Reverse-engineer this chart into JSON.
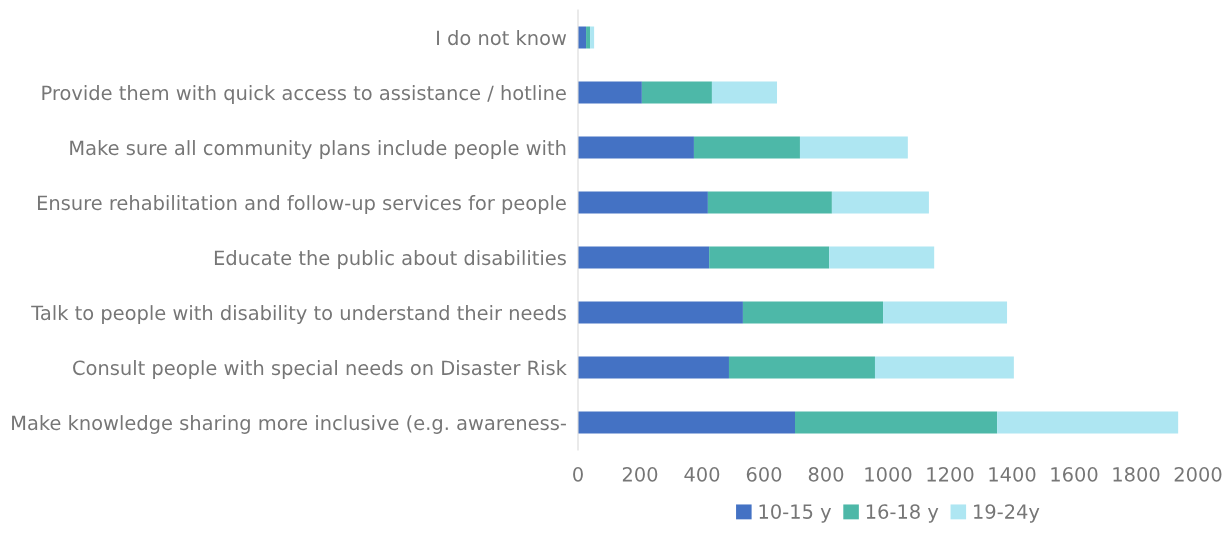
{
  "chart_data": {
    "type": "bar",
    "orientation": "horizontal",
    "stacked": true,
    "categories": [
      "I do not know",
      "Provide them with quick access to assistance / hotline",
      "Make sure all community plans include people with",
      "Ensure rehabilitation and follow-up services for people",
      "Educate the public about disabilities",
      "Talk to people with disability to understand their needs",
      "Consult people with special needs on Disaster Risk",
      "Make knowledge sharing more inclusive (e.g. awareness-"
    ],
    "series": [
      {
        "name": "10-15 y",
        "color": "#4472c4",
        "values": [
          26,
          206,
          374,
          419,
          423,
          532,
          487,
          700
        ]
      },
      {
        "name": "16-18 y",
        "color": "#4db8a8",
        "values": [
          13,
          226,
          342,
          400,
          387,
          452,
          471,
          652
        ]
      },
      {
        "name": "19-24y",
        "color": "#aee6f2",
        "values": [
          13,
          210,
          348,
          313,
          339,
          400,
          448,
          584
        ]
      }
    ],
    "xlim": [
      0,
      2000
    ],
    "xticks": [
      0,
      200,
      400,
      600,
      800,
      1000,
      1200,
      1400,
      1600,
      1800,
      2000
    ],
    "grid": false,
    "legend": "bottom"
  }
}
